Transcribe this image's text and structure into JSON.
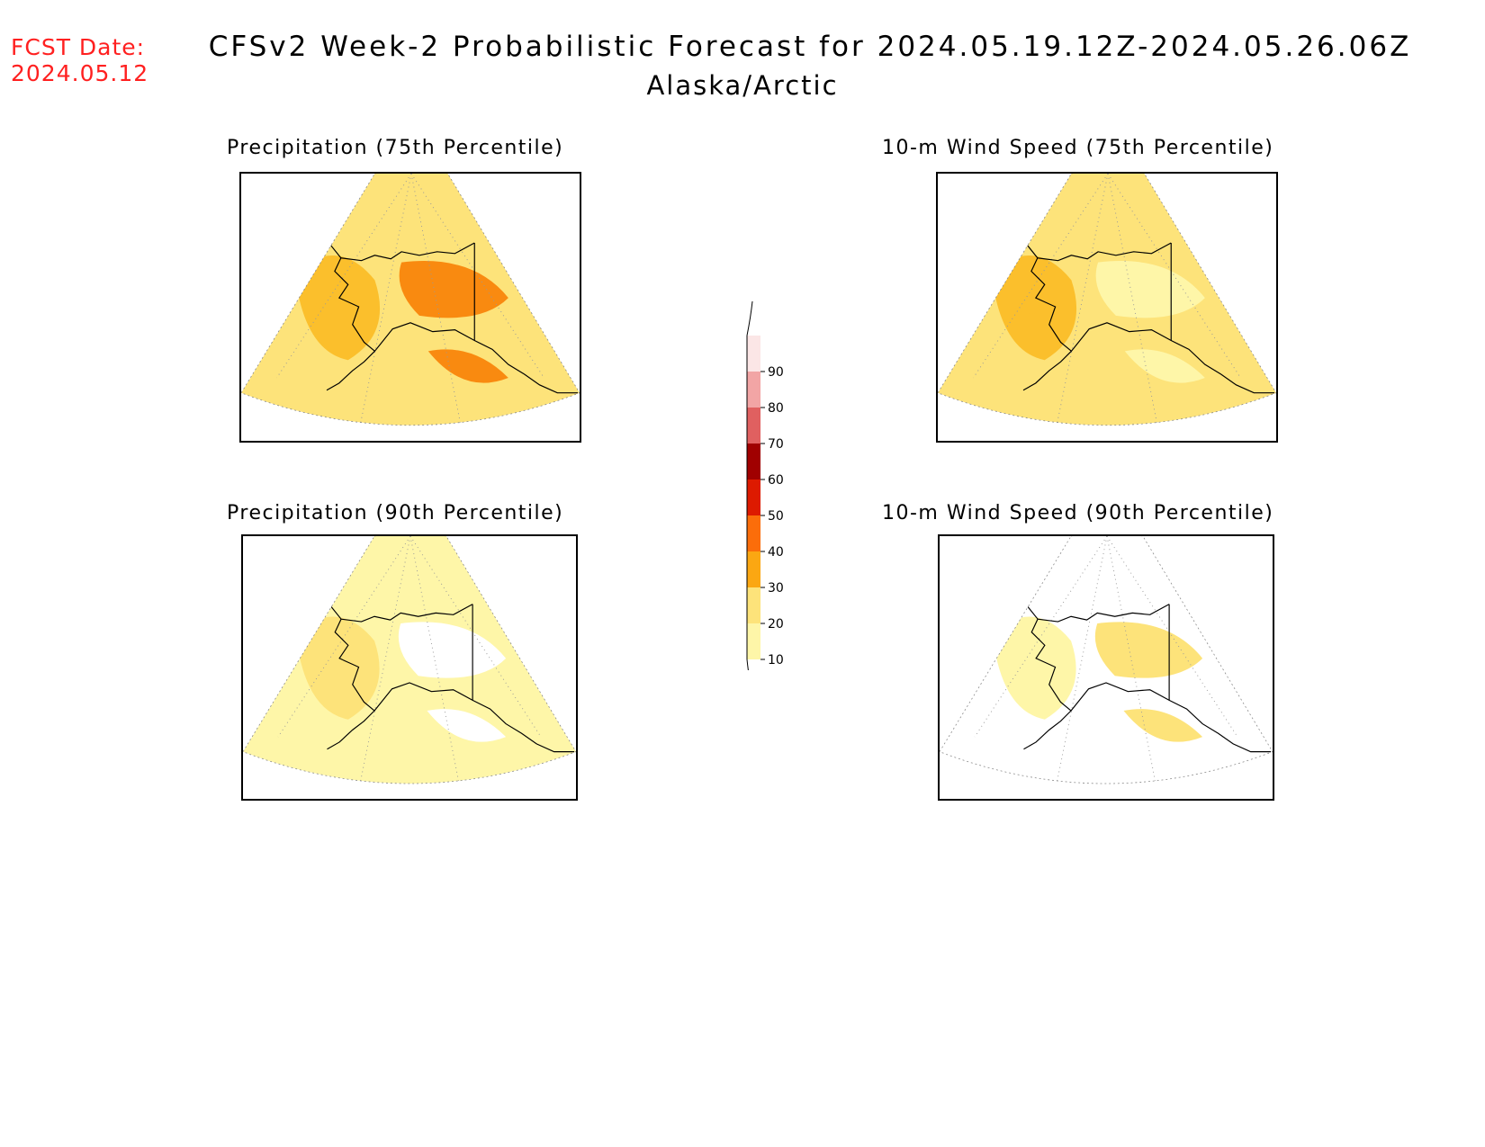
{
  "header": {
    "fcst_label": "FCST Date:",
    "fcst_date": "2024.05.12",
    "title": "CFSv2 Week-2 Probabilistic Forecast for 2024.05.19.12Z-2024.05.26.06Z",
    "subtitle": "Alaska/Arctic"
  },
  "panels": [
    {
      "title": "Precipitation (75th Percentile)",
      "fill": "#fde37a",
      "patches": [
        "#fbbf2c",
        "#f98a10"
      ]
    },
    {
      "title": "10-m Wind Speed (75th Percentile)",
      "fill": "#fde37a",
      "patches": [
        "#fbbf2c",
        "#fef6a8"
      ]
    },
    {
      "title": "Precipitation (90th Percentile)",
      "fill": "#fef6a8",
      "patches": [
        "#fde37a",
        "#ffffff"
      ]
    },
    {
      "title": "10-m Wind Speed (90th Percentile)",
      "fill": "#ffffff",
      "patches": [
        "#fef6a8",
        "#fde37a"
      ]
    }
  ],
  "colorbar": {
    "levels": [
      {
        "label": "90",
        "color": "#fbe6e6"
      },
      {
        "label": "80",
        "color": "#f2a5a5"
      },
      {
        "label": "70",
        "color": "#e06060"
      },
      {
        "label": "60",
        "color": "#a00000"
      },
      {
        "label": "50",
        "color": "#dd1a00"
      },
      {
        "label": "40",
        "color": "#fb6d0a"
      },
      {
        "label": "30",
        "color": "#fba712"
      },
      {
        "label": "20",
        "color": "#fde37a"
      },
      {
        "label": "10",
        "color": "#fef6a8"
      }
    ]
  }
}
